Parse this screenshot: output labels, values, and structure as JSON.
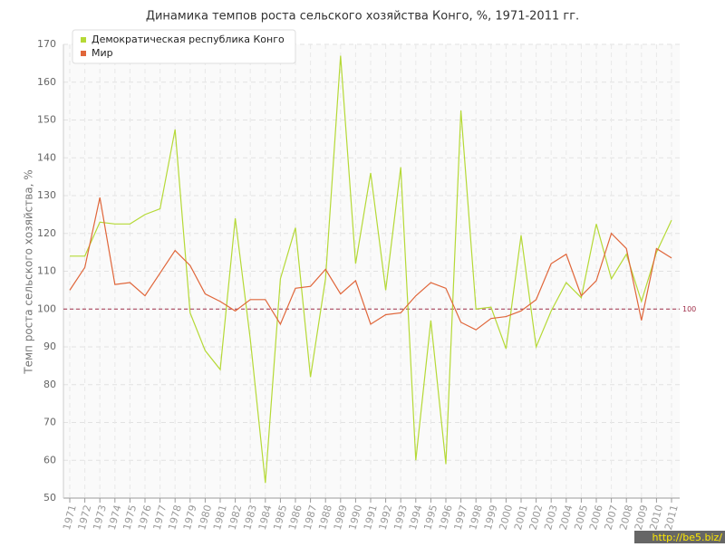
{
  "chart_data": {
    "type": "line",
    "title": "Динамика темпов роста сельского хозяйства Конго, %, 1971-2011 гг.",
    "y_label": "Темп роста сельского хозяйства, %",
    "categories": [
      "1971",
      "1972",
      "1973",
      "1974",
      "1975",
      "1976",
      "1977",
      "1978",
      "1979",
      "1980",
      "1981",
      "1982",
      "1983",
      "1984",
      "1985",
      "1986",
      "1987",
      "1988",
      "1989",
      "1990",
      "1991",
      "1992",
      "1993",
      "1994",
      "1995",
      "1996",
      "1997",
      "1998",
      "1999",
      "2000",
      "2001",
      "2002",
      "2003",
      "2004",
      "2005",
      "2006",
      "2007",
      "2008",
      "2009",
      "2010",
      "2011"
    ],
    "series": [
      {
        "name": "Демократическая республика Конго",
        "color": "#b5d936",
        "values": [
          114,
          114,
          123,
          122.5,
          122.5,
          125,
          126.5,
          147.5,
          99,
          89,
          84,
          124,
          92,
          54,
          108,
          121.5,
          82,
          108,
          167,
          112,
          136,
          105,
          137.5,
          60,
          97,
          59,
          152.5,
          100,
          100.5,
          89.5,
          119.5,
          90,
          99.5,
          107,
          103,
          122.5,
          108,
          114.5,
          102,
          115,
          123.5
        ]
      },
      {
        "name": "Мир",
        "color": "#e0663a",
        "values": [
          105,
          111,
          129.5,
          106.5,
          107,
          103.5,
          109.5,
          115.5,
          111.5,
          104,
          102,
          99.5,
          102.5,
          102.5,
          96,
          105.5,
          106,
          110.5,
          104,
          107.5,
          96,
          98.5,
          99,
          103.5,
          107,
          105.5,
          96.5,
          94.5,
          97.5,
          98,
          99.5,
          102.5,
          112,
          114.5,
          103.5,
          107.5,
          120,
          116,
          97,
          116,
          113.5
        ]
      }
    ],
    "reference_line": 100,
    "reference_color": "#a0304a",
    "ylim": [
      50,
      170
    ],
    "yticks": [
      50,
      60,
      70,
      80,
      90,
      100,
      110,
      120,
      130,
      140,
      150,
      160,
      170
    ],
    "grid": true,
    "legend": "top-left",
    "watermark": "http://be5.biz/"
  }
}
